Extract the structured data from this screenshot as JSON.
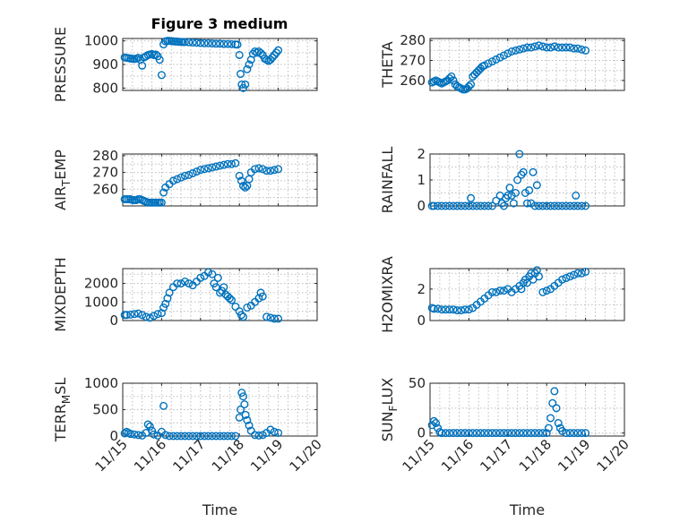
{
  "title": "Figure 3 medium",
  "chart_data": [
    {
      "type": "scatter",
      "ylabel": "PRESSURE",
      "xlabel": "",
      "ylim": [
        790,
        1010
      ],
      "yticks": [
        800,
        900,
        1000
      ],
      "xlim": [
        0,
        5
      ],
      "xticklabels": [],
      "x": [
        0.05,
        0.1,
        0.15,
        0.2,
        0.25,
        0.3,
        0.35,
        0.4,
        0.45,
        0.5,
        0.55,
        0.6,
        0.65,
        0.7,
        0.75,
        0.8,
        0.85,
        0.9,
        0.95,
        1.0,
        1.05,
        1.1,
        1.15,
        1.2,
        1.25,
        1.3,
        1.35,
        1.4,
        1.45,
        1.5,
        1.55,
        1.6,
        1.7,
        1.8,
        1.9,
        2.0,
        2.1,
        2.2,
        2.3,
        2.4,
        2.5,
        2.6,
        2.7,
        2.8,
        2.9,
        2.95,
        3.0,
        3.03,
        3.06,
        3.1,
        3.15,
        3.2,
        3.25,
        3.3,
        3.35,
        3.4,
        3.45,
        3.5,
        3.55,
        3.6,
        3.65,
        3.7,
        3.75,
        3.8,
        3.85,
        3.9,
        3.95,
        4.0
      ],
      "y": [
        930,
        928,
        927,
        925,
        924,
        923,
        925,
        928,
        920,
        895,
        930,
        935,
        940,
        942,
        944,
        940,
        942,
        935,
        920,
        855,
        985,
        998,
        1000,
        1000,
        999,
        998,
        997,
        997,
        996,
        996,
        995,
        995,
        994,
        993,
        992,
        991,
        990,
        990,
        989,
        988,
        988,
        987,
        987,
        986,
        985,
        984,
        940,
        860,
        815,
        800,
        815,
        880,
        900,
        920,
        945,
        955,
        950,
        955,
        948,
        940,
        925,
        920,
        915,
        920,
        930,
        940,
        950,
        960
      ]
    },
    {
      "type": "scatter",
      "ylabel": "THETA",
      "xlabel": "",
      "ylim": [
        255,
        281
      ],
      "yticks": [
        260,
        270,
        280
      ],
      "xlim": [
        0,
        5
      ],
      "xticklabels": [],
      "x": [
        0.05,
        0.1,
        0.15,
        0.2,
        0.25,
        0.3,
        0.35,
        0.4,
        0.45,
        0.5,
        0.55,
        0.6,
        0.65,
        0.7,
        0.75,
        0.8,
        0.85,
        0.9,
        0.95,
        1.0,
        1.05,
        1.1,
        1.15,
        1.2,
        1.25,
        1.3,
        1.35,
        1.4,
        1.5,
        1.6,
        1.7,
        1.8,
        1.9,
        2.0,
        2.1,
        2.2,
        2.3,
        2.4,
        2.5,
        2.6,
        2.7,
        2.8,
        2.9,
        3.0,
        3.1,
        3.2,
        3.3,
        3.4,
        3.5,
        3.6,
        3.7,
        3.8,
        3.9,
        4.0
      ],
      "y": [
        259,
        259.5,
        260,
        259.5,
        259,
        258.5,
        259,
        259.5,
        260,
        261,
        262,
        260,
        258,
        257,
        256.5,
        256,
        255.5,
        255.5,
        256,
        257,
        258,
        262,
        263,
        264,
        265,
        266,
        267,
        267.5,
        268.5,
        269.5,
        270.5,
        271.5,
        272.5,
        273.5,
        274.5,
        275,
        275.5,
        276,
        276.5,
        276.5,
        277,
        277.5,
        277,
        276.5,
        276.5,
        277,
        276.5,
        276.5,
        276.5,
        276.5,
        276,
        276,
        275.5,
        275
      ]
    },
    {
      "type": "scatter",
      "ylabel": "AIR_TEMP",
      "xlabel": "",
      "ylim": [
        250,
        281
      ],
      "yticks": [
        260,
        270,
        280
      ],
      "xlim": [
        0,
        5
      ],
      "xticklabels": [],
      "x": [
        0.05,
        0.1,
        0.15,
        0.2,
        0.25,
        0.3,
        0.35,
        0.4,
        0.45,
        0.5,
        0.55,
        0.6,
        0.65,
        0.7,
        0.75,
        0.8,
        0.85,
        0.9,
        0.95,
        1.0,
        1.05,
        1.1,
        1.2,
        1.3,
        1.4,
        1.5,
        1.6,
        1.7,
        1.8,
        1.9,
        2.0,
        2.1,
        2.2,
        2.3,
        2.4,
        2.5,
        2.6,
        2.7,
        2.8,
        2.9,
        3.0,
        3.05,
        3.1,
        3.15,
        3.2,
        3.25,
        3.3,
        3.4,
        3.5,
        3.6,
        3.7,
        3.8,
        3.9,
        4.0
      ],
      "y": [
        254,
        254,
        254,
        254,
        253.5,
        253.5,
        253.5,
        254,
        254,
        253.5,
        253,
        252.5,
        252,
        252,
        252,
        252,
        252,
        252,
        252,
        252,
        258,
        261,
        263,
        265,
        266,
        267,
        268,
        268.5,
        269.5,
        270.5,
        271.5,
        272,
        272.5,
        273,
        273.5,
        274,
        274.5,
        275,
        275,
        275.5,
        268,
        265,
        262,
        261,
        262,
        266,
        270,
        272,
        272.5,
        272,
        271,
        271,
        271.5,
        272
      ]
    },
    {
      "type": "scatter",
      "ylabel": "RAINFALL",
      "xlabel": "",
      "ylim": [
        0,
        2
      ],
      "yticks": [
        0,
        1,
        2
      ],
      "xlim": [
        0,
        5
      ],
      "xticklabels": [],
      "x": [
        0.05,
        0.1,
        0.2,
        0.3,
        0.4,
        0.5,
        0.6,
        0.7,
        0.8,
        0.9,
        1.0,
        1.05,
        1.1,
        1.2,
        1.3,
        1.4,
        1.5,
        1.6,
        1.7,
        1.8,
        1.85,
        1.9,
        1.95,
        2.0,
        2.05,
        2.1,
        2.15,
        2.2,
        2.25,
        2.3,
        2.35,
        2.4,
        2.45,
        2.5,
        2.55,
        2.6,
        2.65,
        2.7,
        2.75,
        2.8,
        2.9,
        3.0,
        3.1,
        3.2,
        3.3,
        3.4,
        3.5,
        3.6,
        3.7,
        3.8,
        3.9,
        4.0,
        3.75
      ],
      "y": [
        0,
        0,
        0,
        0,
        0,
        0,
        0,
        0,
        0,
        0,
        0,
        0.3,
        0,
        0,
        0,
        0,
        0,
        0,
        0.2,
        0.4,
        0.1,
        0,
        0.3,
        0.4,
        0.7,
        0.4,
        0.1,
        0.5,
        1.0,
        2.0,
        1.2,
        1.3,
        0.5,
        0.1,
        0.6,
        0.1,
        1.3,
        0,
        0.8,
        0,
        0,
        0,
        0,
        0,
        0,
        0,
        0,
        0,
        0,
        0,
        0,
        0,
        0.4
      ]
    },
    {
      "type": "scatter",
      "ylabel": "MIXDEPTH",
      "xlabel": "",
      "ylim": [
        0,
        2800
      ],
      "yticks": [
        0,
        1000,
        2000
      ],
      "xlim": [
        0,
        5
      ],
      "xticklabels": [],
      "x": [
        0.05,
        0.1,
        0.2,
        0.3,
        0.4,
        0.5,
        0.6,
        0.7,
        0.8,
        0.9,
        1.0,
        1.05,
        1.1,
        1.15,
        1.2,
        1.3,
        1.4,
        1.5,
        1.6,
        1.7,
        1.8,
        1.9,
        2.0,
        2.1,
        2.2,
        2.3,
        2.35,
        2.4,
        2.45,
        2.5,
        2.55,
        2.6,
        2.65,
        2.7,
        2.75,
        2.8,
        2.9,
        3.0,
        3.05,
        3.1,
        3.2,
        3.3,
        3.4,
        3.5,
        3.55,
        3.6,
        3.7,
        3.8,
        3.9,
        4.0
      ],
      "y": [
        300,
        300,
        320,
        350,
        380,
        300,
        200,
        150,
        250,
        350,
        400,
        700,
        900,
        1200,
        1500,
        1800,
        2000,
        2000,
        2100,
        2000,
        1900,
        2100,
        2300,
        2400,
        2600,
        2500,
        2000,
        1800,
        2300,
        1500,
        1600,
        1800,
        1400,
        1300,
        1200,
        1100,
        750,
        500,
        300,
        200,
        700,
        800,
        1000,
        1200,
        1500,
        1300,
        200,
        150,
        100,
        100
      ]
    },
    {
      "type": "scatter",
      "ylabel": "H2OMIXRA",
      "xlabel": "",
      "ylim": [
        0,
        3.3
      ],
      "yticks": [
        0,
        2
      ],
      "xlim": [
        0,
        5
      ],
      "xticklabels": [],
      "x": [
        0.05,
        0.1,
        0.2,
        0.3,
        0.4,
        0.5,
        0.6,
        0.7,
        0.8,
        0.9,
        1.0,
        1.1,
        1.2,
        1.3,
        1.4,
        1.5,
        1.6,
        1.7,
        1.8,
        1.9,
        2.0,
        2.1,
        2.2,
        2.3,
        2.35,
        2.4,
        2.45,
        2.5,
        2.55,
        2.6,
        2.65,
        2.7,
        2.75,
        2.8,
        2.9,
        3.0,
        3.1,
        3.2,
        3.3,
        3.4,
        3.5,
        3.6,
        3.7,
        3.8,
        3.9,
        4.0
      ],
      "y": [
        0.8,
        0.75,
        0.75,
        0.7,
        0.7,
        0.7,
        0.7,
        0.65,
        0.65,
        0.7,
        0.7,
        0.8,
        1.0,
        1.2,
        1.4,
        1.6,
        1.8,
        1.8,
        1.9,
        1.9,
        2.0,
        1.8,
        2.0,
        2.2,
        2.0,
        2.4,
        2.6,
        2.4,
        2.8,
        3.0,
        2.6,
        3.0,
        3.2,
        2.8,
        1.8,
        1.9,
        2.0,
        2.2,
        2.4,
        2.6,
        2.7,
        2.8,
        2.9,
        3.0,
        3.0,
        3.1
      ]
    },
    {
      "type": "scatter",
      "ylabel": "TERR_MSL",
      "xlabel": "Time",
      "ylim": [
        0,
        1000
      ],
      "yticks": [
        0,
        500,
        1000
      ],
      "xlim": [
        0,
        5
      ],
      "xticklabels": [
        "11/15",
        "11/16",
        "11/17",
        "11/18",
        "11/19",
        "11/20"
      ],
      "x": [
        0.05,
        0.1,
        0.15,
        0.2,
        0.3,
        0.4,
        0.5,
        0.6,
        0.65,
        0.7,
        0.75,
        0.8,
        0.9,
        1.0,
        1.05,
        1.1,
        1.2,
        1.3,
        1.4,
        1.5,
        1.6,
        1.7,
        1.8,
        1.9,
        2.0,
        2.1,
        2.2,
        2.3,
        2.4,
        2.5,
        2.6,
        2.7,
        2.8,
        2.9,
        3.0,
        3.03,
        3.06,
        3.1,
        3.13,
        3.16,
        3.2,
        3.25,
        3.3,
        3.4,
        3.5,
        3.6,
        3.7,
        3.8,
        3.9,
        4.0
      ],
      "y": [
        50,
        80,
        60,
        40,
        30,
        20,
        10,
        60,
        220,
        180,
        100,
        30,
        10,
        80,
        570,
        20,
        0,
        0,
        0,
        0,
        0,
        0,
        0,
        0,
        0,
        0,
        0,
        0,
        0,
        0,
        0,
        0,
        0,
        0,
        350,
        500,
        820,
        750,
        600,
        400,
        300,
        200,
        100,
        20,
        10,
        20,
        60,
        120,
        80,
        60
      ]
    },
    {
      "type": "scatter",
      "ylabel": "SUN_FLUX",
      "xlabel": "Time",
      "ylim": [
        -3,
        50
      ],
      "yticks": [
        0,
        50
      ],
      "xlim": [
        0,
        5
      ],
      "xticklabels": [
        "11/15",
        "11/16",
        "11/17",
        "11/18",
        "11/19",
        "11/20"
      ],
      "x": [
        0.05,
        0.1,
        0.15,
        0.2,
        0.25,
        0.3,
        0.4,
        0.5,
        0.6,
        0.7,
        0.8,
        0.9,
        1.0,
        1.1,
        1.2,
        1.3,
        1.4,
        1.5,
        1.6,
        1.7,
        1.8,
        1.9,
        2.0,
        2.1,
        2.2,
        2.3,
        2.4,
        2.5,
        2.6,
        2.7,
        2.8,
        2.9,
        3.0,
        3.05,
        3.1,
        3.15,
        3.2,
        3.25,
        3.3,
        3.35,
        3.4,
        3.5,
        3.6,
        3.7,
        3.8,
        3.9,
        4.0
      ],
      "y": [
        8,
        12,
        10,
        5,
        1,
        0,
        0,
        0,
        0,
        0,
        0,
        0,
        0,
        0,
        0,
        0,
        0,
        0,
        0,
        0,
        0,
        0,
        0,
        0,
        0,
        0,
        0,
        0,
        0,
        0,
        0,
        0,
        0,
        5,
        15,
        30,
        42,
        25,
        10,
        5,
        2,
        0,
        0,
        0,
        0,
        0,
        0
      ]
    }
  ]
}
